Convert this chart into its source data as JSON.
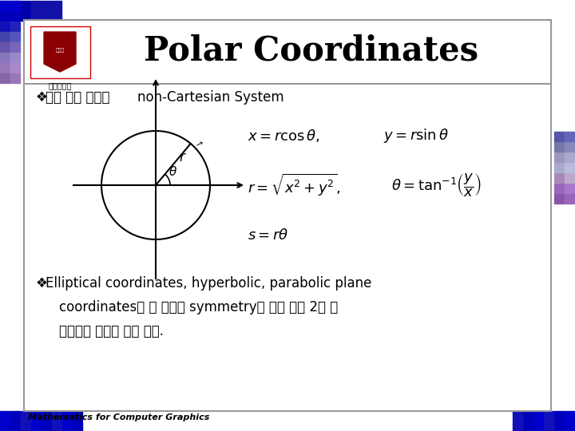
{
  "title": "Polar Coordinates",
  "bullet1_prefix": "❖ ",
  "bullet1_korean": "가장 많이 쓰이는 ",
  "bullet1_english": "non-Cartesian System",
  "bullet2_prefix": "❖ ",
  "bullet2_line1": "Elliptical coordinates, hyperbolic, parabolic plane",
  "bullet2_line2_k1": "coordinates",
  "bullet2_line2_k2": "등 원 이외에 ",
  "bullet2_line2_k3": "symmetry",
  "bullet2_line2_k4": "를 가진 다른 2차 곰",
  "bullet2_line3": "선들로도 좌표계 표현 가능.",
  "footer": "Mathematics for Computer Graphics",
  "slide_bg": "#ffffff",
  "slide_border": "#808080",
  "header_border": "#808080",
  "outer_bg": "#f0f0f0",
  "title_color": "#000000",
  "mosaic_top_colors": [
    "#0000CC",
    "#0000AA",
    "#1111BB",
    "#0000EE"
  ],
  "mosaic_left_colors": [
    "#0000CC",
    "#0000AA",
    "#6644AA",
    "#8866BB",
    "#9977CC",
    "#AAAADD",
    "#8866CC",
    "#6644BB"
  ],
  "mosaic_right_colors": [
    "#7755AA",
    "#9966BB",
    "#AAAACC",
    "#BBBBDD",
    "#9999CC",
    "#7777BB",
    "#5555AA"
  ],
  "mosaic_bottom_colors": [
    "#0000CC",
    "#0000AA",
    "#1111BB",
    "#0000EE"
  ]
}
